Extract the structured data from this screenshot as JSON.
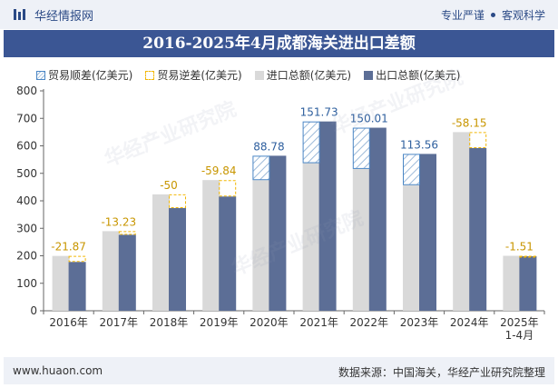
{
  "header": {
    "brand": "华经情报网",
    "tagline_left": "专业严谨",
    "tagline_right": "客观科学"
  },
  "chart_title": "2016-2025年4月成都海关进出口差额",
  "legend": {
    "surplus": "贸易顺差(亿美元)",
    "deficit": "贸易逆差(亿美元)",
    "import": "进口总额(亿美元)",
    "export": "出口总额(亿美元)"
  },
  "watermark": "华经产业研究院",
  "footer": {
    "url": "www.huaon.com",
    "source": "数据来源：中国海关，华经产业研究院整理"
  },
  "colors": {
    "import": "#d9d9d9",
    "export": "#5c6e96",
    "surplus_border": "#4a86c5",
    "deficit_border": "#f2b705",
    "title_bg": "#3b5694"
  },
  "chart_data": {
    "type": "bar",
    "title": "2016-2025年4月成都海关进出口差额",
    "categories": [
      "2016年",
      "2017年",
      "2018年",
      "2019年",
      "2020年",
      "2021年",
      "2022年",
      "2023年",
      "2024年",
      "2025年\n1-4月"
    ],
    "yticks": [
      0,
      100,
      200,
      300,
      400,
      500,
      600,
      700,
      800
    ],
    "ylim": [
      0,
      800
    ],
    "series": [
      {
        "name": "进口总额(亿美元)",
        "values": [
          199.5,
          289.6,
          423.5,
          475.4,
          475.2,
          537.0,
          516.0,
          457.0,
          650.0,
          200.0
        ]
      },
      {
        "name": "出口总额(亿美元)",
        "values": [
          177.6,
          276.4,
          373.5,
          415.6,
          564.0,
          688.7,
          666.0,
          570.6,
          591.9,
          198.5
        ]
      }
    ],
    "balance": {
      "values": [
        -21.87,
        -13.23,
        -50,
        -59.84,
        88.78,
        151.73,
        150.01,
        113.56,
        -58.15,
        -1.51
      ],
      "labels": [
        "-21.87",
        "-13.23",
        "-50",
        "-59.84",
        "88.78",
        "151.73",
        "150.01",
        "113.56",
        "-58.15",
        "-1.51"
      ]
    },
    "grid": false,
    "legend_position": "top"
  }
}
